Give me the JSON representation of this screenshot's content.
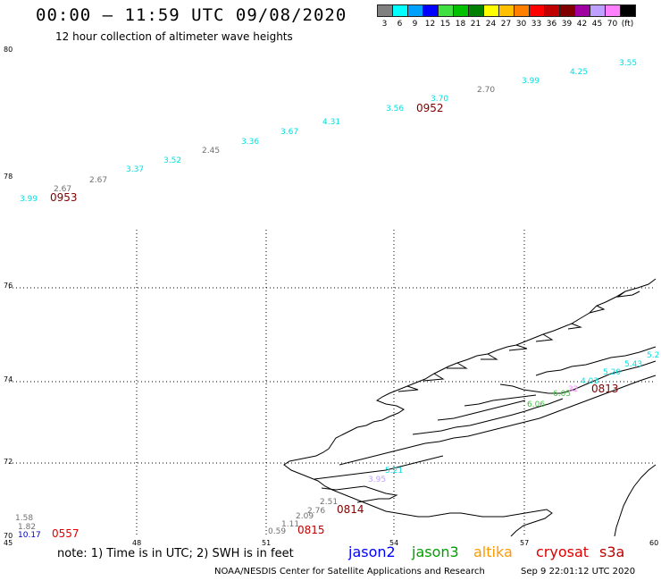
{
  "header": {
    "title": "00:00 – 11:59 UTC 09/08/2020",
    "subtitle": "12 hour collection of altimeter wave heights"
  },
  "legend": {
    "colors": [
      "#808080",
      "#00ffff",
      "#00a0ff",
      "#0000ff",
      "#40e040",
      "#00c000",
      "#008000",
      "#ffff00",
      "#ffc000",
      "#ff8000",
      "#ff0000",
      "#c00000",
      "#800000",
      "#a000a0",
      "#c0a0ff",
      "#ff80ff",
      "#000000"
    ],
    "labels": [
      "3",
      "6",
      "9",
      "12",
      "15",
      "18",
      "21",
      "24",
      "27",
      "30",
      "33",
      "36",
      "39",
      "42",
      "45",
      "70",
      "(ft)"
    ]
  },
  "axes": {
    "x_ticks": [
      "45",
      "48",
      "51",
      "54",
      "57",
      "60"
    ],
    "y_ticks_top": [
      "80",
      "78"
    ],
    "y_ticks_bottom": [
      "76",
      "74",
      "72",
      "70"
    ]
  },
  "tracks": [
    {
      "label": "3.99",
      "color": "#00e0e0"
    },
    {
      "label": "2.67",
      "color": "#707070"
    },
    {
      "label": "0953",
      "color": "#800000"
    },
    {
      "label": "2.67",
      "color": "#707070"
    },
    {
      "label": "3.37",
      "color": "#00e0e0"
    },
    {
      "label": "3.52",
      "color": "#00e0e0"
    },
    {
      "label": "2.45",
      "color": "#707070"
    },
    {
      "label": "3.36",
      "color": "#00e0e0"
    },
    {
      "label": "3.67",
      "color": "#00e0e0"
    },
    {
      "label": "4.31",
      "color": "#00e0e0"
    },
    {
      "label": "3.56",
      "color": "#00e0e0"
    },
    {
      "label": "3.70",
      "color": "#00e0e0"
    },
    {
      "label": "0952",
      "color": "#800000"
    },
    {
      "label": "2.70",
      "color": "#707070"
    },
    {
      "label": "3.99",
      "color": "#00e0e0"
    },
    {
      "label": "4.25",
      "color": "#00e0e0"
    },
    {
      "label": "3.55",
      "color": "#00e0e0"
    },
    {
      "label": "0813",
      "color": "#800000"
    },
    {
      "label": "5.20",
      "color": "#00e0e0"
    },
    {
      "label": "5.43",
      "color": "#00e0e0"
    },
    {
      "label": "5.2",
      "color": "#00e0e0"
    },
    {
      "label": "4.03",
      "color": "#00e0e0"
    },
    {
      "label": "6.05",
      "color": "#40c040"
    },
    {
      "label": "6.06",
      "color": "#40c040"
    },
    {
      "label": "32",
      "color": "#ff80ff"
    },
    {
      "label": "5.21",
      "color": "#00e0e0"
    },
    {
      "label": "3.95",
      "color": "#c0a0ff"
    },
    {
      "label": "2.51",
      "color": "#707070"
    },
    {
      "label": "2.76",
      "color": "#707070"
    },
    {
      "label": "0814",
      "color": "#800000"
    },
    {
      "label": "2.09",
      "color": "#707070"
    },
    {
      "label": "1.11",
      "color": "#707070"
    },
    {
      "label": "0.59",
      "color": "#707070"
    },
    {
      "label": "0815",
      "color": "#c00000"
    },
    {
      "label": "1.58",
      "color": "#707070"
    },
    {
      "label": "1.82",
      "color": "#707070"
    },
    {
      "label": "10.17",
      "color": "#0000c0"
    },
    {
      "label": "0557",
      "color": "#e00000"
    }
  ],
  "note": "note: 1) Time is in UTC; 2) SWH is in feet",
  "satellites": [
    {
      "name": "jason2",
      "color": "#0000ff"
    },
    {
      "name": "jason3",
      "color": "#00a000"
    },
    {
      "name": "altika",
      "color": "#ff9900"
    },
    {
      "name": "cryosat",
      "color": "#e00000"
    },
    {
      "name": "s3a",
      "color": "#c00000"
    }
  ],
  "footer": {
    "credit": "NOAA/NESDIS Center for Satellite Applications and Research",
    "timestamp": "Sep  9 22:01:12 UTC 2020"
  }
}
